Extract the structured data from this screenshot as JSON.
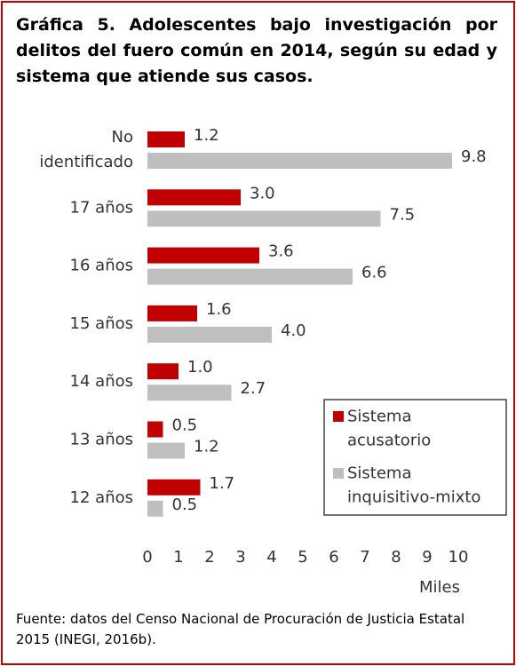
{
  "chart_data": {
    "type": "bar",
    "orientation": "horizontal",
    "title": "Gráfica 5. Adolescentes bajo investigación por delitos del fuero común en 2014, según su edad y sistema que atiende sus casos.",
    "categories": [
      "No identificado",
      "17 años",
      "16 años",
      "15 años",
      "14 años",
      "13 años",
      "12 años"
    ],
    "series": [
      {
        "name": "Sistema acusatorio",
        "color": "#c00000",
        "values": [
          1.2,
          3.0,
          3.6,
          1.6,
          1.0,
          0.5,
          1.7
        ],
        "value_labels": [
          "1.2",
          "3.0",
          "3.6",
          "1.6",
          "1.0",
          "0.5",
          "1.7"
        ]
      },
      {
        "name": "Sistema inquisitivo-mixto",
        "color": "#bfbfbf",
        "values": [
          9.8,
          7.5,
          6.6,
          4.0,
          2.7,
          1.2,
          0.5
        ],
        "value_labels": [
          "9.8",
          "7.5",
          "6.6",
          "4.0",
          "2.7",
          "1.2",
          "0.5"
        ]
      }
    ],
    "xlim": [
      0,
      10
    ],
    "xticks": [
      0,
      1,
      2,
      3,
      4,
      5,
      6,
      7,
      8,
      9,
      10
    ],
    "xlabel": "Miles",
    "grid": false,
    "legend": "lower right",
    "source": "Fuente: datos del Censo Nacional de Procuración de Justicia Estatal 2015 (INEGI, 2016b)."
  }
}
